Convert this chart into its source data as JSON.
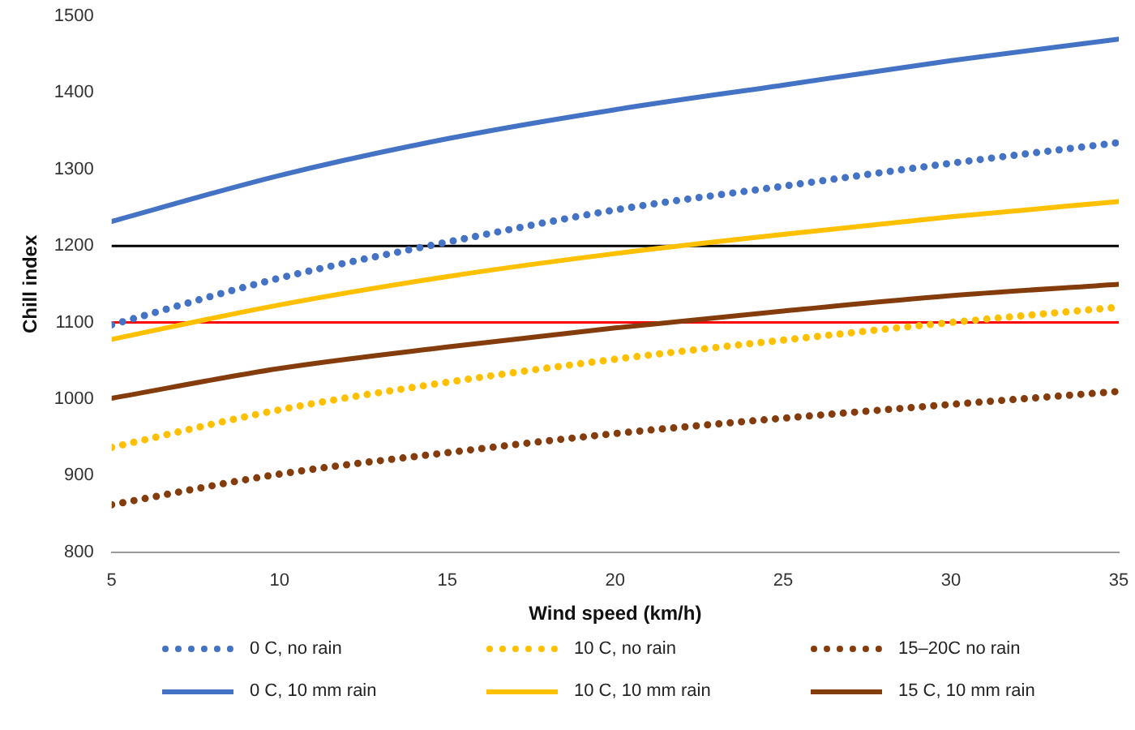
{
  "chart_data": {
    "type": "line",
    "xlabel": "Wind speed (km/h)",
    "ylabel": "Chill index",
    "x": [
      5,
      10,
      15,
      20,
      25,
      30,
      35
    ],
    "xlim": [
      5,
      35
    ],
    "xticks": [
      5,
      10,
      15,
      20,
      25,
      30,
      35
    ],
    "ylim": [
      800,
      1500
    ],
    "yticks": [
      800,
      900,
      1000,
      1100,
      1200,
      1300,
      1400,
      1500
    ],
    "grid": false,
    "legend": "bottom",
    "marker": "none",
    "ref_lines": [
      {
        "axis": "y",
        "value": 1200,
        "color": "#000000"
      },
      {
        "axis": "y",
        "value": 1100,
        "color": "#ff0000"
      }
    ],
    "series": [
      {
        "name": "0 C, no rain",
        "color": "#4472c4",
        "line_style": "dotted",
        "values": [
          1097,
          1158,
          1205,
          1247,
          1278,
          1308,
          1335
        ]
      },
      {
        "name": "10 C, no rain",
        "color": "#ffc000",
        "line_style": "dotted",
        "values": [
          937,
          986,
          1022,
          1052,
          1077,
          1100,
          1120
        ]
      },
      {
        "name": "15–20C no rain",
        "color": "#843c0c",
        "line_style": "dotted",
        "values": [
          862,
          902,
          930,
          955,
          975,
          993,
          1010
        ]
      },
      {
        "name": "0 C, 10 mm rain",
        "color": "#4472c4",
        "line_style": "solid",
        "values": [
          1232,
          1292,
          1340,
          1378,
          1410,
          1442,
          1470
        ]
      },
      {
        "name": "10 C, 10 mm rain",
        "color": "#ffc000",
        "line_style": "solid",
        "values": [
          1078,
          1123,
          1160,
          1190,
          1215,
          1238,
          1258
        ]
      },
      {
        "name": "15 C, 10 mm rain",
        "color": "#843c0c",
        "line_style": "solid",
        "values": [
          1001,
          1040,
          1068,
          1093,
          1115,
          1135,
          1150
        ]
      }
    ]
  }
}
